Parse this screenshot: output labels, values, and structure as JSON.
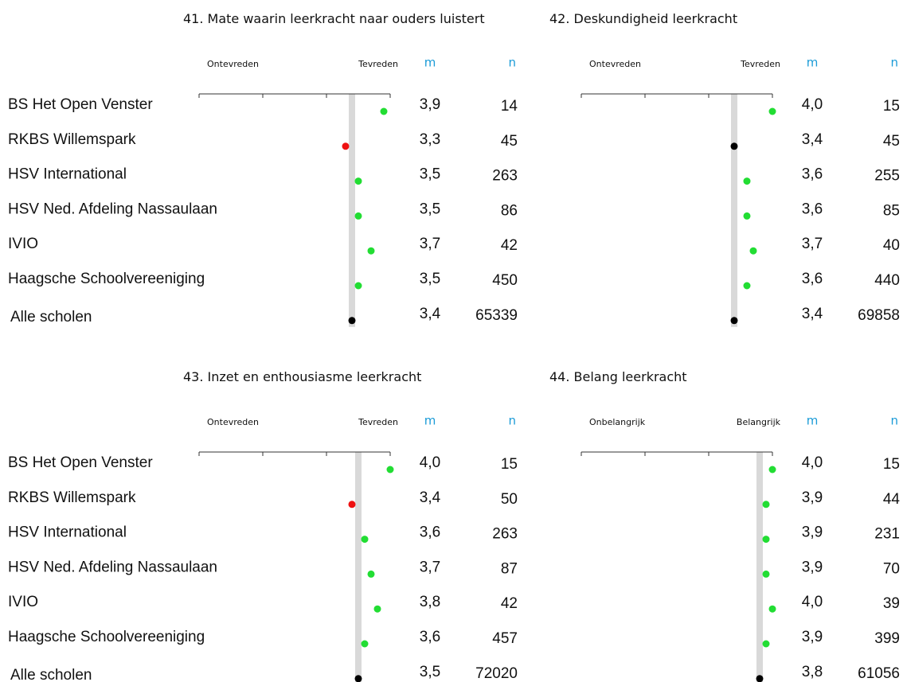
{
  "chart_data": [
    {
      "type": "dot",
      "title": "41. Mate waarin leerkracht naar ouders luistert",
      "left_label": "Ontevreden",
      "right_label": "Tevreden",
      "m_header": "m",
      "n_header": "n",
      "categories": [
        "BS Het Open Venster",
        "RKBS Willemspark",
        "HSV International",
        "HSV Ned. Afdeling Nassaulaan",
        "IVIO",
        "Haagsche Schoolvereeniging",
        "Alle scholen"
      ],
      "values": [
        3.9,
        3.3,
        3.5,
        3.5,
        3.7,
        3.5,
        3.4
      ],
      "value_labels": [
        "3,9",
        "3,3",
        "3,5",
        "3,5",
        "3,7",
        "3,5",
        "3,4"
      ],
      "n": [
        14,
        45,
        263,
        86,
        42,
        450,
        65339
      ],
      "colors": [
        "#22dd33",
        "#ee1111",
        "#22dd33",
        "#22dd33",
        "#22dd33",
        "#22dd33",
        "#000000"
      ],
      "xlim": [
        1,
        4
      ],
      "xticks": [
        1,
        2,
        3,
        4
      ]
    },
    {
      "type": "dot",
      "title": "42. Deskundigheid leerkracht",
      "left_label": "Ontevreden",
      "right_label": "Tevreden",
      "m_header": "m",
      "n_header": "n",
      "values": [
        4.0,
        3.4,
        3.6,
        3.6,
        3.7,
        3.6,
        3.4
      ],
      "value_labels": [
        "4,0",
        "3,4",
        "3,6",
        "3,6",
        "3,7",
        "3,6",
        "3,4"
      ],
      "n": [
        15,
        45,
        255,
        85,
        40,
        440,
        69858
      ],
      "colors": [
        "#22dd33",
        "#000000",
        "#22dd33",
        "#22dd33",
        "#22dd33",
        "#22dd33",
        "#000000"
      ],
      "xlim": [
        1,
        4
      ],
      "xticks": [
        1,
        2,
        3,
        4
      ]
    },
    {
      "type": "dot",
      "title": "43. Inzet en enthousiasme leerkracht",
      "left_label": "Ontevreden",
      "right_label": "Tevreden",
      "m_header": "m",
      "n_header": "n",
      "categories": [
        "BS Het Open Venster",
        "RKBS Willemspark",
        "HSV International",
        "HSV Ned. Afdeling Nassaulaan",
        "IVIO",
        "Haagsche Schoolvereeniging",
        "Alle scholen"
      ],
      "values": [
        4.0,
        3.4,
        3.6,
        3.7,
        3.8,
        3.6,
        3.5
      ],
      "value_labels": [
        "4,0",
        "3,4",
        "3,6",
        "3,7",
        "3,8",
        "3,6",
        "3,5"
      ],
      "n": [
        15,
        50,
        263,
        87,
        42,
        457,
        72020
      ],
      "colors": [
        "#22dd33",
        "#ee1111",
        "#22dd33",
        "#22dd33",
        "#22dd33",
        "#22dd33",
        "#000000"
      ],
      "xlim": [
        1,
        4
      ],
      "xticks": [
        1,
        2,
        3,
        4
      ]
    },
    {
      "type": "dot",
      "title": "44. Belang leerkracht",
      "left_label": "Onbelangrijk",
      "right_label": "Belangrijk",
      "m_header": "m",
      "n_header": "n",
      "values": [
        4.0,
        3.9,
        3.9,
        3.9,
        4.0,
        3.9,
        3.8
      ],
      "value_labels": [
        "4,0",
        "3,9",
        "3,9",
        "3,9",
        "4,0",
        "3,9",
        "3,8"
      ],
      "n": [
        15,
        44,
        231,
        70,
        39,
        399,
        61056
      ],
      "colors": [
        "#22dd33",
        "#22dd33",
        "#22dd33",
        "#22dd33",
        "#22dd33",
        "#22dd33",
        "#000000"
      ],
      "xlim": [
        1,
        4
      ],
      "xticks": [
        1,
        2,
        3,
        4
      ]
    }
  ]
}
